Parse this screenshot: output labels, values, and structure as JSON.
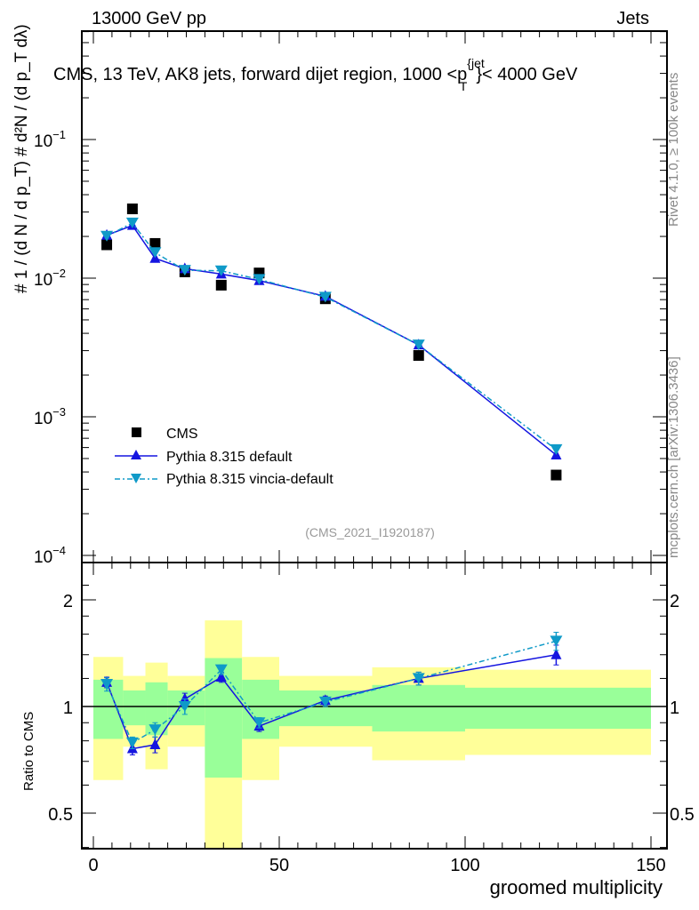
{
  "header": {
    "left": "13000 GeV pp",
    "right": "Jets"
  },
  "side_labels": {
    "rivet": "Rivet 4.1.0, ≥ 100k events",
    "mcplots": "mcplots.cern.ch [arXiv:1306.3436]"
  },
  "colors": {
    "cms": "#000000",
    "default": "#1515e0",
    "vincia": "#0f9ac8",
    "band_outer": "#ffff99",
    "band_inner": "#99ff99"
  },
  "chart_data": [
    {
      "type": "scatter",
      "title": {
        "prefix": "CMS, 13 TeV, AK8 jets, forward dijet region, 1000 <p",
        "sup": "{jet",
        "sub": "T",
        "suffix": "}< 4000 GeV"
      },
      "ylabel": "# 1 / (d N / d p_T)  # d²N / (d p_T dλ)",
      "yscale": "log",
      "ylim": [
        0.0001,
        0.6
      ],
      "xlim": [
        -3,
        155
      ],
      "ytick_labels": [
        {
          "value": 0.1,
          "base": "10",
          "exp": "−1"
        },
        {
          "value": 0.01,
          "base": "10",
          "exp": "−2"
        },
        {
          "value": 0.001,
          "base": "10",
          "exp": "−3"
        },
        {
          "value": 0.0001,
          "base": "10",
          "exp": "−4"
        }
      ],
      "watermark": "(CMS_2021_I1920187)",
      "legend": {
        "placement": "bottom-left",
        "entries": [
          "CMS",
          "Pythia 8.315 default",
          "Pythia 8.315 vincia-default"
        ]
      },
      "x": [
        3.6,
        10.5,
        16.6,
        24.6,
        34.4,
        44.6,
        62.4,
        87.5,
        124.5
      ],
      "series": [
        {
          "name": "CMS",
          "marker": "square",
          "values": [
            0.0174,
            0.0316,
            0.0178,
            0.0111,
            0.0089,
            0.0109,
            0.0071,
            0.00277,
            0.00038
          ]
        },
        {
          "name": "Pythia 8.315 default",
          "marker": "triangle-up",
          "line": "solid",
          "values": [
            0.0204,
            0.024,
            0.0139,
            0.0117,
            0.0107,
            0.0096,
            0.0074,
            0.0033,
            0.00053
          ]
        },
        {
          "name": "Pythia 8.315 vincia-default",
          "marker": "triangle-down",
          "line": "dashdot",
          "values": [
            0.0201,
            0.025,
            0.0153,
            0.0114,
            0.0113,
            0.0098,
            0.0073,
            0.0033,
            0.00058
          ]
        }
      ]
    },
    {
      "type": "line",
      "ylabel": "Ratio to CMS",
      "xlabel": "groomed multiplicity",
      "yscale": "log",
      "ylim": [
        0.4,
        2.3
      ],
      "xlim": [
        -3,
        155
      ],
      "reference": 1,
      "ytick_labels": [
        {
          "value": 0.5,
          "label": "0.5"
        },
        {
          "value": 1,
          "label": "1"
        },
        {
          "value": 2,
          "label": "2"
        }
      ],
      "xtick_labels": [
        {
          "value": 0,
          "label": "0"
        },
        {
          "value": 50,
          "label": "50"
        },
        {
          "value": 100,
          "label": "100"
        },
        {
          "value": 150,
          "label": "150"
        }
      ],
      "bins": [
        [
          0,
          8
        ],
        [
          8,
          14
        ],
        [
          14,
          20
        ],
        [
          20,
          30
        ],
        [
          30,
          40
        ],
        [
          40,
          50
        ],
        [
          50,
          75
        ],
        [
          75,
          100
        ],
        [
          100,
          150
        ]
      ],
      "band_outer": [
        [
          0.62,
          1.38
        ],
        [
          0.77,
          1.22
        ],
        [
          0.665,
          1.33
        ],
        [
          0.77,
          1.22
        ],
        [
          0.3,
          1.75
        ],
        [
          0.62,
          1.38
        ],
        [
          0.77,
          1.22
        ],
        [
          0.705,
          1.29
        ],
        [
          0.73,
          1.27
        ]
      ],
      "band_inner": [
        [
          0.81,
          1.19
        ],
        [
          0.885,
          1.11
        ],
        [
          0.83,
          1.17
        ],
        [
          0.885,
          1.11
        ],
        [
          0.63,
          1.37
        ],
        [
          0.81,
          1.19
        ],
        [
          0.88,
          1.11
        ],
        [
          0.85,
          1.15
        ],
        [
          0.865,
          1.13
        ]
      ],
      "x": [
        3.6,
        10.5,
        16.6,
        24.6,
        34.4,
        44.6,
        62.4,
        87.5,
        124.5
      ],
      "series": [
        {
          "name": "Pythia 8.315 default",
          "values": [
            1.17,
            0.76,
            0.78,
            1.05,
            1.21,
            0.88,
            1.04,
            1.2,
            1.4
          ],
          "err": [
            0.04,
            0.03,
            0.04,
            0.04,
            0.04,
            0.03,
            0.03,
            0.05,
            0.09
          ]
        },
        {
          "name": "Pythia 8.315 vincia-default",
          "values": [
            1.155,
            0.79,
            0.86,
            1.0,
            1.27,
            0.9,
            1.03,
            1.2,
            1.53
          ],
          "err": [
            0.05,
            0.03,
            0.04,
            0.05,
            0.04,
            0.03,
            0.03,
            0.05,
            0.09
          ]
        }
      ]
    }
  ]
}
